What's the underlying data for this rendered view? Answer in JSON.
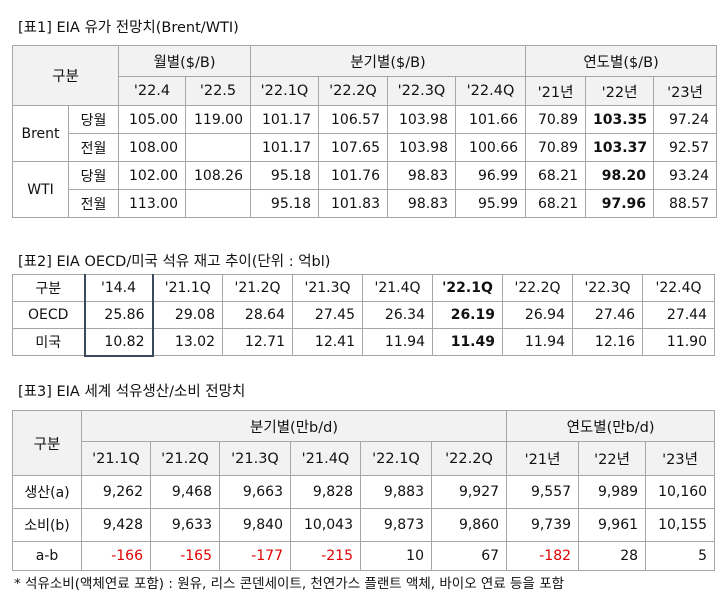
{
  "table1": {
    "title": "[표1] EIA 유가 전망치(Brent/WTI)",
    "corner": "구분",
    "groups": [
      "월별($/B)",
      "분기별($/B)",
      "연도별($/B)"
    ],
    "columns": [
      "'22.4",
      "'22.5",
      "'22.1Q",
      "'22.2Q",
      "'22.3Q",
      "'22.4Q",
      "'21년",
      "'22년",
      "'23년"
    ],
    "rows": [
      {
        "name": "Brent",
        "sub": [
          {
            "label": "당월",
            "values": [
              "105.00",
              "119.00",
              "101.17",
              "106.57",
              "103.98",
              "101.66",
              "70.89",
              "103.35",
              "97.24"
            ]
          },
          {
            "label": "전월",
            "values": [
              "108.00",
              null,
              "101.17",
              "107.65",
              "103.98",
              "100.66",
              "70.89",
              "103.37",
              "92.57"
            ]
          }
        ]
      },
      {
        "name": "WTI",
        "sub": [
          {
            "label": "당월",
            "values": [
              "102.00",
              "108.26",
              "95.18",
              "101.76",
              "98.83",
              "96.99",
              "68.21",
              "98.20",
              "93.24"
            ]
          },
          {
            "label": "전월",
            "values": [
              "113.00",
              null,
              "95.18",
              "101.83",
              "98.83",
              "95.99",
              "68.21",
              "97.96",
              "88.57"
            ]
          }
        ]
      }
    ]
  },
  "table2": {
    "title": "[표2] EIA OECD/미국 석유 재고 추이(단위 : 억bl)",
    "corner": "구분",
    "columns": [
      "'14.4",
      "'21.1Q",
      "'21.2Q",
      "'21.3Q",
      "'21.4Q",
      "'22.1Q",
      "'22.2Q",
      "'22.3Q",
      "'22.4Q"
    ],
    "rows": [
      {
        "label": "OECD",
        "values": [
          "25.86",
          "29.08",
          "28.64",
          "27.45",
          "26.34",
          "26.19",
          "26.94",
          "27.46",
          "27.44"
        ]
      },
      {
        "label": "미국",
        "values": [
          "10.82",
          "13.02",
          "12.71",
          "12.41",
          "11.94",
          "11.49",
          "11.94",
          "12.16",
          "11.90"
        ]
      }
    ]
  },
  "table3": {
    "title": "[표3] EIA 세계 석유생산/소비 전망치",
    "corner": "구분",
    "groups": [
      "분기별(만b/d)",
      "연도별(만b/d)"
    ],
    "columns": [
      "'21.1Q",
      "'21.2Q",
      "'21.3Q",
      "'21.4Q",
      "'22.1Q",
      "'22.2Q",
      "'21년",
      "'22년",
      "'23년"
    ],
    "rows": [
      {
        "label": "생산(a)",
        "values": [
          "9,262",
          "9,468",
          "9,663",
          "9,828",
          "9,883",
          "9,927",
          "9,557",
          "9,989",
          "10,160"
        ]
      },
      {
        "label": "소비(b)",
        "values": [
          "9,428",
          "9,633",
          "9,840",
          "10,043",
          "9,873",
          "9,860",
          "9,739",
          "9,961",
          "10,155"
        ]
      },
      {
        "label": "a-b",
        "values": [
          "-166",
          "-165",
          "-177",
          "-215",
          "10",
          "67",
          "-182",
          "28",
          "5"
        ]
      }
    ],
    "footnote": "* 석유소비(액체연료 포함) : 원유, 리스 콘덴세이트, 천연가스 플랜트 액체, 바이오 연료 등을 포함"
  }
}
